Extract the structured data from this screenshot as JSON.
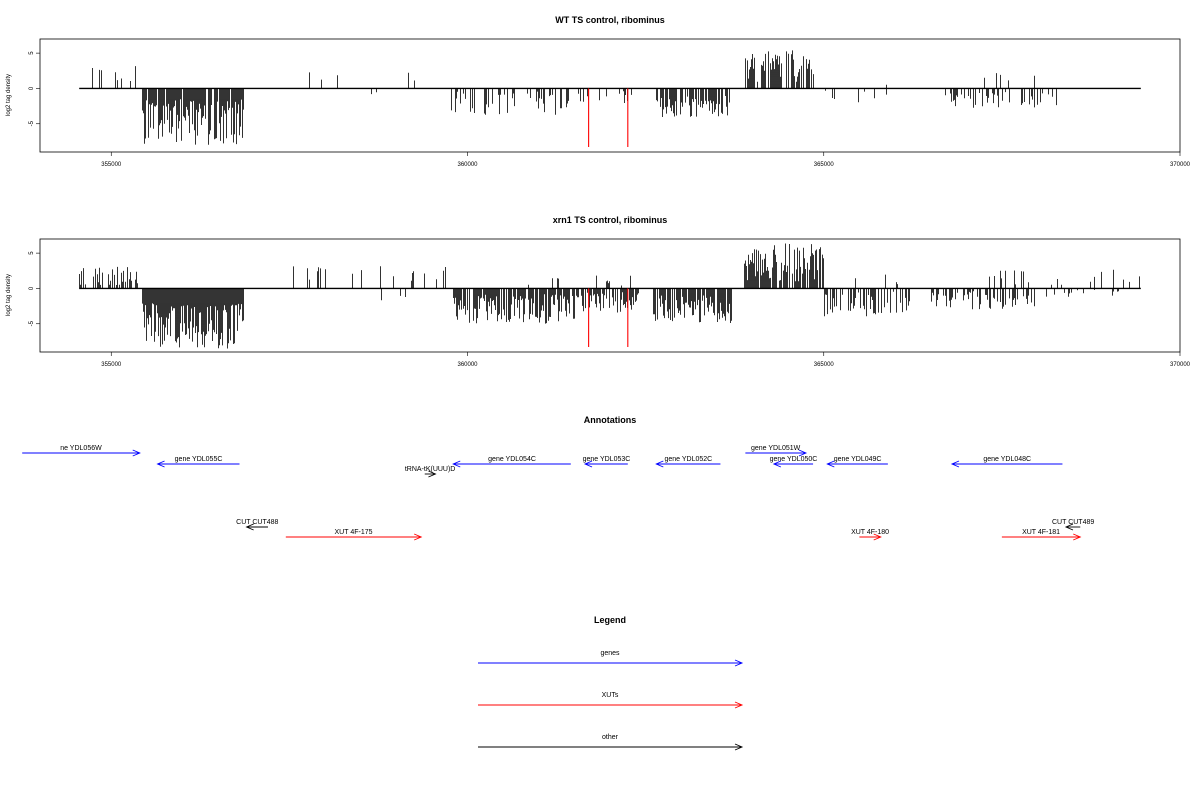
{
  "chart_data": [
    {
      "type": "bar",
      "title": "WT TS control, ribominus",
      "ylabel": "log2 tag density",
      "xlim": [
        354000,
        370000
      ],
      "ylim": [
        -9,
        7
      ],
      "xticks": [
        355000,
        360000,
        365000,
        370000
      ],
      "xtick_labels": [
        "355000",
        "360000",
        "365000",
        "370000"
      ],
      "yticks": [
        5,
        0,
        -5
      ],
      "ytick_labels": [
        "5",
        "0",
        "-5"
      ],
      "track_range": [
        354550,
        369450
      ],
      "marker_color": "#ff0000",
      "markers": [
        361700,
        362250
      ],
      "regions": [
        {
          "from": 354550,
          "to": 355400,
          "sign": 1,
          "lo": 0.4,
          "hi": 3.2,
          "density": 0.12
        },
        {
          "from": 355430,
          "to": 356850,
          "sign": -1,
          "lo": 1.5,
          "hi": 8.0,
          "density": 0.95
        },
        {
          "from": 357200,
          "to": 359700,
          "sign": 1,
          "lo": 0.4,
          "hi": 2.4,
          "density": 0.03
        },
        {
          "from": 358600,
          "to": 359700,
          "sign": -1,
          "lo": 0.4,
          "hi": 1.8,
          "density": 0.03
        },
        {
          "from": 359750,
          "to": 361450,
          "sign": -1,
          "lo": 0.4,
          "hi": 3.8,
          "density": 0.35
        },
        {
          "from": 361550,
          "to": 362300,
          "sign": -1,
          "lo": 0.3,
          "hi": 2.2,
          "density": 0.25
        },
        {
          "from": 362650,
          "to": 363700,
          "sign": -1,
          "lo": 1.0,
          "hi": 4.2,
          "density": 0.7
        },
        {
          "from": 363880,
          "to": 364850,
          "sign": 1,
          "lo": 0.8,
          "hi": 5.5,
          "density": 0.7
        },
        {
          "from": 364880,
          "to": 366000,
          "sign": -1,
          "lo": 0.3,
          "hi": 2.5,
          "density": 0.1
        },
        {
          "from": 365650,
          "to": 366000,
          "sign": 1,
          "lo": 0.5,
          "hi": 1.6,
          "density": 0.1
        },
        {
          "from": 366700,
          "to": 368300,
          "sign": -1,
          "lo": 0.3,
          "hi": 2.8,
          "density": 0.3
        },
        {
          "from": 367000,
          "to": 368200,
          "sign": 1,
          "lo": 0.4,
          "hi": 2.3,
          "density": 0.04
        }
      ]
    },
    {
      "type": "bar",
      "title": "xrn1 TS control, ribominus",
      "ylabel": "log2 tag density",
      "xlim": [
        354000,
        370000
      ],
      "ylim": [
        -9,
        7
      ],
      "xticks": [
        355000,
        360000,
        365000,
        370000
      ],
      "xtick_labels": [
        "355000",
        "360000",
        "365000",
        "370000"
      ],
      "yticks": [
        5,
        0,
        -5
      ],
      "ytick_labels": [
        "5",
        "0",
        "-5"
      ],
      "track_range": [
        354550,
        369450
      ],
      "marker_color": "#ff0000",
      "markers": [
        361700,
        362250
      ],
      "regions": [
        {
          "from": 354550,
          "to": 355400,
          "sign": 1,
          "lo": 0.4,
          "hi": 3.5,
          "density": 0.5
        },
        {
          "from": 355430,
          "to": 356850,
          "sign": -1,
          "lo": 2.0,
          "hi": 8.5,
          "density": 0.98
        },
        {
          "from": 357200,
          "to": 359800,
          "sign": 1,
          "lo": 0.4,
          "hi": 3.2,
          "density": 0.1
        },
        {
          "from": 358600,
          "to": 359700,
          "sign": -1,
          "lo": 0.4,
          "hi": 1.8,
          "density": 0.04
        },
        {
          "from": 359800,
          "to": 361500,
          "sign": -1,
          "lo": 0.8,
          "hi": 5.0,
          "density": 0.8
        },
        {
          "from": 360800,
          "to": 361400,
          "sign": 1,
          "lo": 0.4,
          "hi": 1.6,
          "density": 0.12
        },
        {
          "from": 361500,
          "to": 362400,
          "sign": -1,
          "lo": 0.5,
          "hi": 3.5,
          "density": 0.7
        },
        {
          "from": 361800,
          "to": 362300,
          "sign": 1,
          "lo": 0.3,
          "hi": 2.5,
          "density": 0.2
        },
        {
          "from": 362600,
          "to": 363700,
          "sign": -1,
          "lo": 1.0,
          "hi": 5.0,
          "density": 0.8
        },
        {
          "from": 363880,
          "to": 365000,
          "sign": 1,
          "lo": 1.0,
          "hi": 6.5,
          "density": 0.85
        },
        {
          "from": 365000,
          "to": 366200,
          "sign": -1,
          "lo": 0.4,
          "hi": 4.0,
          "density": 0.45
        },
        {
          "from": 365400,
          "to": 366200,
          "sign": 1,
          "lo": 0.4,
          "hi": 3.0,
          "density": 0.12
        },
        {
          "from": 366500,
          "to": 368000,
          "sign": -1,
          "lo": 0.3,
          "hi": 3.0,
          "density": 0.45
        },
        {
          "from": 367200,
          "to": 369450,
          "sign": 1,
          "lo": 0.3,
          "hi": 2.8,
          "density": 0.12
        },
        {
          "from": 368100,
          "to": 369300,
          "sign": -1,
          "lo": 0.2,
          "hi": 1.2,
          "density": 0.2
        }
      ]
    }
  ],
  "annotations": {
    "title": "Annotations",
    "colors": {
      "genes": "#0000ff",
      "XUTs": "#ff0000",
      "other": "#000000"
    },
    "features": [
      {
        "label": "ne YDL056W",
        "kind": "genes",
        "strand": "+",
        "start": 353750,
        "end": 355400,
        "row": 0
      },
      {
        "label": "gene YDL055C",
        "kind": "genes",
        "strand": "-",
        "start": 355650,
        "end": 356800,
        "row": 1
      },
      {
        "label": "tRNA-tK(UUU)D",
        "kind": "other",
        "strand": "+",
        "start": 359400,
        "end": 359550,
        "row": 2
      },
      {
        "label": "gene YDL054C",
        "kind": "genes",
        "strand": "-",
        "start": 359800,
        "end": 361450,
        "row": 1
      },
      {
        "label": "gene YDL053C",
        "kind": "genes",
        "strand": "-",
        "start": 361650,
        "end": 362250,
        "row": 1
      },
      {
        "label": "gene YDL052C",
        "kind": "genes",
        "strand": "-",
        "start": 362650,
        "end": 363550,
        "row": 1
      },
      {
        "label": "gene YDL051W",
        "kind": "genes",
        "strand": "+",
        "start": 363900,
        "end": 364750,
        "row": 0
      },
      {
        "label": "gene YDL050C",
        "kind": "genes",
        "strand": "-",
        "start": 364300,
        "end": 364850,
        "row": 1
      },
      {
        "label": "gene YDL049C",
        "kind": "genes",
        "strand": "-",
        "start": 365050,
        "end": 365900,
        "row": 1
      },
      {
        "label": "gene YDL048C",
        "kind": "genes",
        "strand": "-",
        "start": 366800,
        "end": 368350,
        "row": 1
      },
      {
        "label": "CUT CUT488",
        "kind": "other",
        "strand": "-",
        "start": 356900,
        "end": 357200,
        "row": 3
      },
      {
        "label": "XUT 4F-175",
        "kind": "XUTs",
        "strand": "+",
        "start": 357450,
        "end": 359350,
        "row": 4
      },
      {
        "label": "XUT 4F-180",
        "kind": "XUTs",
        "strand": "+",
        "start": 365500,
        "end": 365800,
        "row": 4
      },
      {
        "label": "XUT 4F-181",
        "kind": "XUTs",
        "strand": "+",
        "start": 367500,
        "end": 368600,
        "row": 4
      },
      {
        "label": "CUT CUT489",
        "kind": "other",
        "strand": "-",
        "start": 368400,
        "end": 368600,
        "row": 3
      }
    ]
  },
  "legend": {
    "title": "Legend",
    "items": [
      {
        "label": "genes",
        "color": "#0000ff"
      },
      {
        "label": "XUTs",
        "color": "#ff0000"
      },
      {
        "label": "other",
        "color": "#000000"
      }
    ]
  }
}
